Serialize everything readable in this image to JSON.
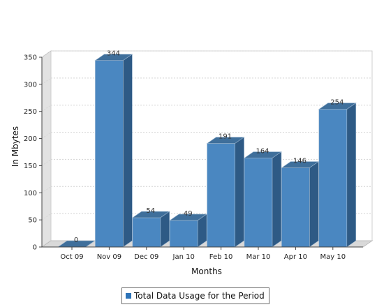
{
  "chart_data": {
    "type": "bar",
    "style": "3d",
    "categories": [
      "Oct 09",
      "Nov 09",
      "Dec 09",
      "Jan 10",
      "Feb 10",
      "Mar 10",
      "Apr 10",
      "May 10"
    ],
    "series": [
      {
        "name": "Total Data Usage for the Period",
        "values": [
          0,
          344,
          54,
          49,
          191,
          164,
          146,
          254
        ]
      }
    ],
    "xlabel": "Months",
    "ylabel": "In Mbytes",
    "ylim": [
      0,
      350
    ],
    "yticks": [
      0,
      50,
      100,
      150,
      200,
      250,
      300,
      350
    ],
    "grid": true,
    "data_labels": true,
    "legend_position": "bottom-center",
    "colors": {
      "bar_front": "#4a87c1",
      "bar_top": "#3f6f9b",
      "bar_side": "#2e5a85",
      "legend_swatch": "#2d73b8",
      "grid": "#d4d4d4",
      "floor": "#d9d9d9"
    }
  }
}
